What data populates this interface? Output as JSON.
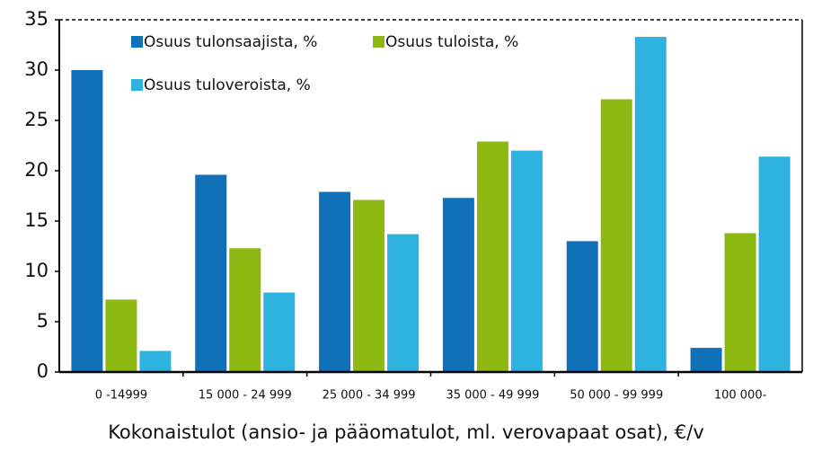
{
  "chart_data": {
    "type": "bar",
    "categories": [
      "0 -14999",
      "15 000 - 24 999",
      "25 000 - 34 999",
      "35 000 - 49 999",
      "50 000 - 99 999",
      "100 000-"
    ],
    "series": [
      {
        "name": "Osuus tulonsaajista, %",
        "color": "#1071b8",
        "values": [
          30.0,
          19.6,
          17.9,
          17.3,
          13.0,
          2.4
        ]
      },
      {
        "name": "Osuus tuloista, %",
        "color": "#8db812",
        "values": [
          7.2,
          12.3,
          17.1,
          22.9,
          27.1,
          13.8
        ]
      },
      {
        "name": "Osuus tuloveroista, %",
        "color": "#2eb3e0",
        "values": [
          2.1,
          7.9,
          13.7,
          22.0,
          33.3,
          21.4
        ]
      }
    ],
    "x_label": "Kokonaistulot (ansio- ja pääomatulot, ml. verovapaat osat), €/v",
    "ylim": [
      0,
      35
    ],
    "yticks": [
      0,
      5,
      10,
      15,
      20,
      25,
      30,
      35
    ],
    "grid": false
  }
}
